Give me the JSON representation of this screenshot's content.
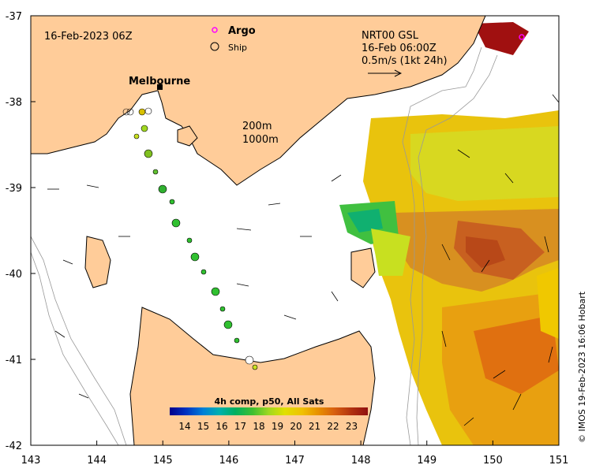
{
  "map": {
    "date_label": "16-Feb-2023 06Z",
    "legend": {
      "argo_label": "Argo",
      "ship_label": "Ship",
      "argo_color": "#ff00ff"
    },
    "product": {
      "line1": "NRT00 GSL",
      "line2": "16-Feb 06:00Z",
      "line3": "0.5m/s (1kt 24h)"
    },
    "contours": {
      "c200": "200m",
      "c1000": "1000m"
    },
    "city": "Melbourne",
    "credit": "© IMOS 19-Feb-2023 16:06 Hobart",
    "x_ticks": [
      "143",
      "144",
      "145",
      "146",
      "147",
      "148",
      "149",
      "150",
      "151"
    ],
    "y_ticks": [
      "-37",
      "-38",
      "-39",
      "-40",
      "-41",
      "-42"
    ],
    "x_range": [
      143,
      151
    ],
    "y_range": [
      -42,
      -37
    ],
    "colorbar": {
      "title": "4h comp, p50, All Sats",
      "ticks": [
        "14",
        "15",
        "16",
        "17",
        "18",
        "19",
        "20",
        "21",
        "22",
        "23"
      ],
      "colors": [
        "#00008b",
        "#0030c0",
        "#0080d8",
        "#00b0b0",
        "#00b060",
        "#40c030",
        "#a0d820",
        "#e0e000",
        "#f0c000",
        "#e89000",
        "#d86010",
        "#b03010",
        "#901010"
      ]
    },
    "colors": {
      "land": "#ffcc99",
      "ocean": "#ffffff",
      "ship_track": "#30c030"
    }
  }
}
